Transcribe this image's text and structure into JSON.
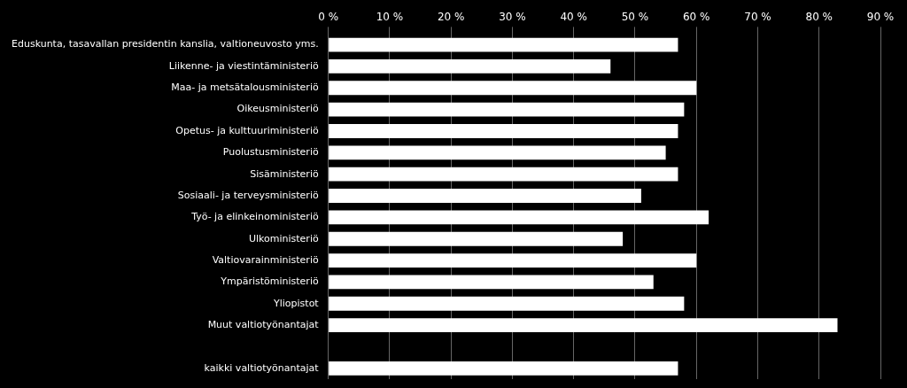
{
  "chart_data": {
    "type": "bar",
    "orientation": "horizontal",
    "categories": [
      "Eduskunta, tasavallan presidentin kanslia, valtioneuvosto yms.",
      "Liikenne- ja viestintäministeriö",
      "Maa- ja metsätalousministeriö",
      "Oikeusministeriö",
      "Opetus- ja kulttuuriministeriö",
      "Puolustusministeriö",
      "Sisäministeriö",
      "Sosiaali- ja terveysministeriö",
      "Työ- ja elinkeinoministeriö",
      "Ulkoministeriö",
      "Valtiovarainministeriö",
      "Ympäristöministeriö",
      "Yliopistot",
      "Muut valtiotyönantajat",
      null,
      "kaikki valtiotyönantajat"
    ],
    "values": [
      57,
      46,
      60,
      58,
      57,
      55,
      57,
      51,
      62,
      48,
      60,
      53,
      58,
      83,
      0,
      57
    ],
    "color": "#ffffff",
    "xlim": [
      0,
      90
    ],
    "xticks": [
      {
        "value": 0,
        "label": "0 %"
      },
      {
        "value": 10,
        "label": "10 %"
      },
      {
        "value": 20,
        "label": "20 %"
      },
      {
        "value": 30,
        "label": "30 %"
      },
      {
        "value": 40,
        "label": "40 %"
      },
      {
        "value": 50,
        "label": "50 %"
      },
      {
        "value": 60,
        "label": "60 %"
      },
      {
        "value": 70,
        "label": "70 %"
      },
      {
        "value": 80,
        "label": "80 %"
      },
      {
        "value": 90,
        "label": "90 %"
      }
    ],
    "grid": true
  }
}
